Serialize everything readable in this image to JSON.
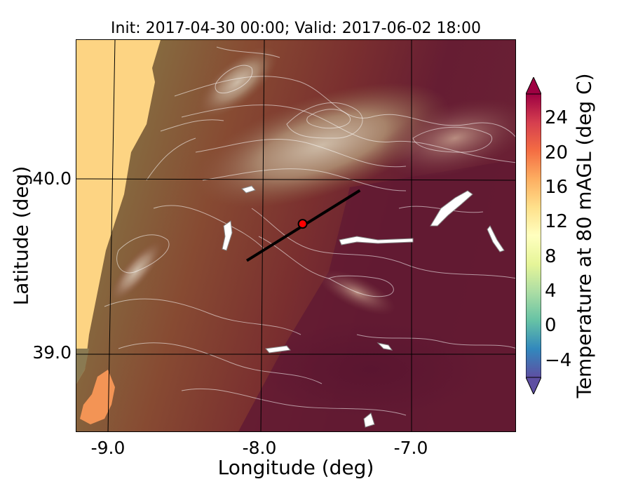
{
  "title": "Init: 2017-04-30 00:00; Valid: 2017-06-02 18:00",
  "axes": {
    "xlabel": "Longitude (deg)",
    "ylabel": "Latitude (deg)",
    "xticks": [
      "-9.0",
      "-8.0",
      "-7.0"
    ],
    "yticks": [
      "40.0",
      "39.0"
    ],
    "xlim": [
      -9.25,
      -6.33
    ],
    "ylim": [
      38.45,
      40.8
    ]
  },
  "colorbar": {
    "label": "Temperature at 80 mAGL (deg C)",
    "ticks": [
      "24",
      "20",
      "16",
      "12",
      "8",
      "4",
      "0",
      "−4"
    ],
    "range": [
      -6,
      27
    ],
    "colormap": "Spectral_r",
    "extend": "both"
  },
  "map": {
    "transect": {
      "start": [
        -8.12,
        39.48
      ],
      "end": [
        -7.37,
        39.9
      ]
    },
    "point": {
      "lon": -7.75,
      "lat": 39.7,
      "color": "#ff0000"
    },
    "contour_color": "#ffffff",
    "coast_fill": "#fdd483",
    "land_warm": "#8a3a2e",
    "land_hot": "#5d1531"
  }
}
